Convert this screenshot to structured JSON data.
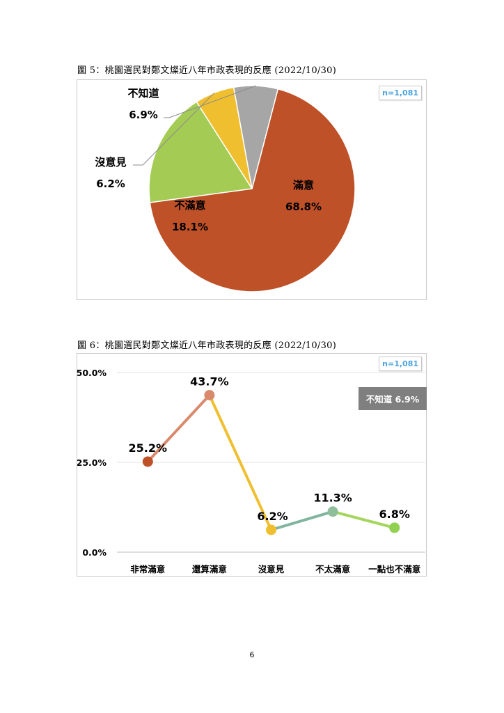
{
  "page_number": "6",
  "figure5": {
    "title": "圖 5：桃園選民對鄭文燦近八年市政表現的反應  (2022/10/30)",
    "n_label": "n=1,081"
  },
  "figure6": {
    "title": "圖 6：桃園選民對鄭文燦近八年市政表現的反應  (2022/10/30)",
    "n_label": "n=1,081",
    "dont_know_label": "不知道 6.9%"
  },
  "colors": {
    "satisfied": "#bf5128",
    "dissatisfied": "#a4cc55",
    "no_opinion": "#f0bf2f",
    "dont_know": "#a6a6a6",
    "n_text": "#4aa3df",
    "badge_bg": "#7f7f7f"
  },
  "chart_data": [
    {
      "type": "pie",
      "slices": [
        {
          "label": "滿意",
          "value": 68.8,
          "value_label": "68.8%",
          "color": "#bf5128"
        },
        {
          "label": "不滿意",
          "value": 18.1,
          "value_label": "18.1%",
          "color": "#a4cc55"
        },
        {
          "label": "沒意見",
          "value": 6.2,
          "value_label": "6.2%",
          "color": "#f0bf2f"
        },
        {
          "label": "不知道",
          "value": 6.9,
          "value_label": "6.9%",
          "color": "#a6a6a6"
        }
      ]
    },
    {
      "type": "line",
      "categories": [
        "非常滿意",
        "還算滿意",
        "沒意見",
        "不太滿意",
        "一點也不滿意"
      ],
      "values": [
        25.2,
        43.7,
        6.2,
        11.3,
        6.8
      ],
      "value_labels": [
        "25.2%",
        "43.7%",
        "6.2%",
        "11.3%",
        "6.8%"
      ],
      "point_colors": [
        "#bf5128",
        "#d98a6c",
        "#f0bf2f",
        "#8fbe9b",
        "#92d050"
      ],
      "segment_colors": [
        "#d98a6c",
        "#f0bf2f",
        "#80b5a0",
        "#a4d65e"
      ],
      "y_ticks": [
        "0.0%",
        "25.0%",
        "50.0%"
      ],
      "ylim": [
        0,
        50
      ],
      "grid": true
    }
  ]
}
